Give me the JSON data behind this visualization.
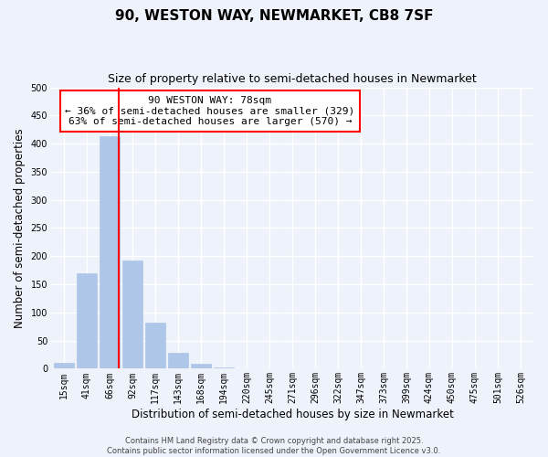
{
  "title": "90, WESTON WAY, NEWMARKET, CB8 7SF",
  "subtitle": "Size of property relative to semi-detached houses in Newmarket",
  "xlabel": "Distribution of semi-detached houses by size in Newmarket",
  "ylabel": "Number of semi-detached properties",
  "bar_labels": [
    "15sqm",
    "41sqm",
    "66sqm",
    "92sqm",
    "117sqm",
    "143sqm",
    "168sqm",
    "194sqm",
    "220sqm",
    "245sqm",
    "271sqm",
    "296sqm",
    "322sqm",
    "347sqm",
    "373sqm",
    "399sqm",
    "424sqm",
    "450sqm",
    "475sqm",
    "501sqm",
    "526sqm"
  ],
  "bar_values": [
    10,
    170,
    413,
    193,
    82,
    29,
    8,
    2,
    0,
    0,
    0,
    0,
    0,
    0,
    0,
    0,
    0,
    0,
    0,
    0,
    0
  ],
  "bar_color": "#aec6e8",
  "bar_edge_color": "#aec6e8",
  "vline_color": "red",
  "vline_x": 2.42,
  "ylim": [
    0,
    500
  ],
  "yticks": [
    0,
    50,
    100,
    150,
    200,
    250,
    300,
    350,
    400,
    450,
    500
  ],
  "annotation_title": "90 WESTON WAY: 78sqm",
  "annotation_line1": "← 36% of semi-detached houses are smaller (329)",
  "annotation_line2": "63% of semi-detached houses are larger (570) →",
  "annotation_box_facecolor": "white",
  "annotation_box_edgecolor": "red",
  "footer_line1": "Contains HM Land Registry data © Crown copyright and database right 2025.",
  "footer_line2": "Contains public sector information licensed under the Open Government Licence v3.0.",
  "background_color": "#eef2fa",
  "grid_color": "#ffffff",
  "title_fontsize": 11,
  "subtitle_fontsize": 9,
  "axis_label_fontsize": 8.5,
  "tick_fontsize": 7,
  "annotation_fontsize": 8,
  "footer_fontsize": 6
}
